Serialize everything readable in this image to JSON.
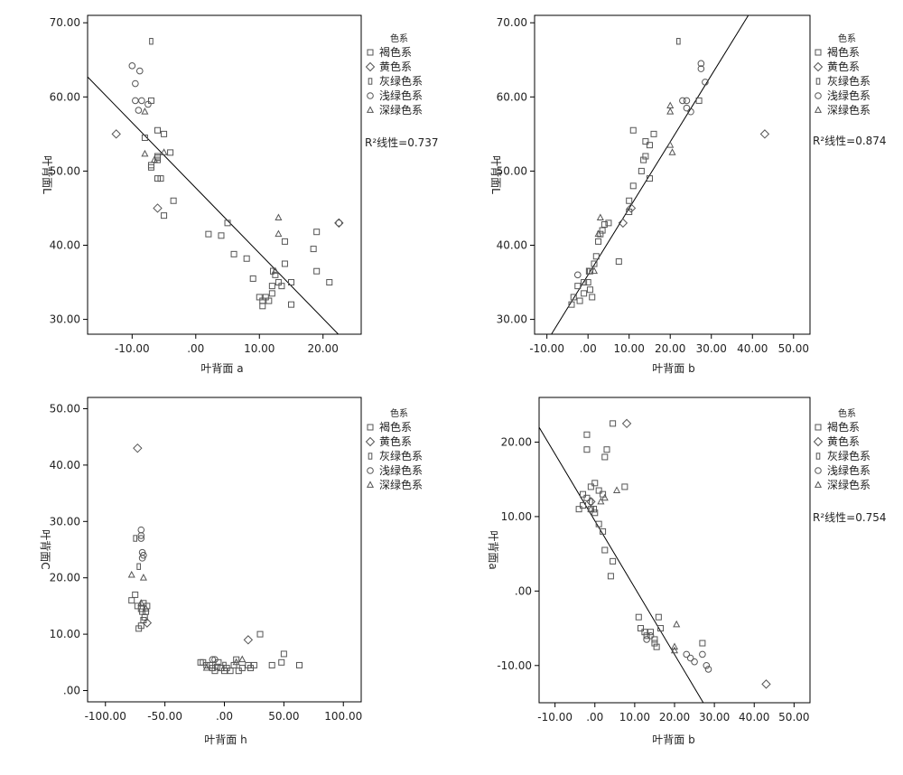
{
  "legend_title": "色系",
  "legend_items": [
    {
      "label": "褐色系",
      "marker": "square"
    },
    {
      "label": "黄色系",
      "marker": "diamond"
    },
    {
      "label": "灰绿色系",
      "marker": "small-rect"
    },
    {
      "label": "浅绿色系",
      "marker": "circle"
    },
    {
      "label": "深绿色系",
      "marker": "triangle"
    }
  ],
  "colors": {
    "marker": "#555555",
    "axis": "#000000",
    "fit_line": "#000000"
  },
  "chart_data": [
    {
      "type": "scatter",
      "xlabel": "叶背面 a",
      "ylabel": "叶背面L",
      "xlim": [
        -17,
        26
      ],
      "ylim": [
        28,
        71
      ],
      "xticks": [
        -10,
        0,
        10,
        20
      ],
      "xtick_labels": [
        "-10.00",
        ".00",
        "10.00",
        "20.00"
      ],
      "yticks": [
        30,
        40,
        50,
        60,
        70
      ],
      "ytick_labels": [
        "30.00",
        "40.00",
        "50.00",
        "60.00",
        "70.00"
      ],
      "r2_label": "R²线性=0.737",
      "fit_line": [
        [
          -17,
          62.7
        ],
        [
          22.4,
          28
        ]
      ],
      "series": [
        {
          "name": "褐色系",
          "marker": "square",
          "points": [
            [
              -8,
              54.5
            ],
            [
              -7,
              50.5
            ],
            [
              -6,
              52
            ],
            [
              -5,
              55
            ],
            [
              -6,
              55.5
            ],
            [
              -6,
              51.5
            ],
            [
              -7,
              50.8
            ],
            [
              -5.5,
              49
            ],
            [
              -6,
              49
            ],
            [
              -5,
              44
            ],
            [
              -4,
              52.5
            ],
            [
              -3.5,
              46
            ],
            [
              -6,
              51.8
            ],
            [
              -7,
              59.5
            ],
            [
              2,
              41.5
            ],
            [
              4,
              41.3
            ],
            [
              5,
              43
            ],
            [
              6,
              38.8
            ],
            [
              8,
              38.2
            ],
            [
              9,
              35.5
            ],
            [
              10,
              33
            ],
            [
              10.5,
              32.5
            ],
            [
              11,
              33
            ],
            [
              12,
              33.5
            ],
            [
              12,
              34.5
            ],
            [
              12.5,
              36
            ],
            [
              13,
              35
            ],
            [
              13.5,
              34.5
            ],
            [
              14,
              40.5
            ],
            [
              14,
              37.5
            ],
            [
              15,
              35
            ],
            [
              15,
              32
            ],
            [
              18.5,
              39.5
            ],
            [
              19,
              36.5
            ],
            [
              19,
              41.8
            ],
            [
              21,
              35
            ],
            [
              10.5,
              31.8
            ],
            [
              11.5,
              32.5
            ]
          ]
        },
        {
          "name": "黄色系",
          "marker": "diamond",
          "points": [
            [
              -12.5,
              55
            ],
            [
              -6,
              45
            ],
            [
              22.5,
              43
            ]
          ]
        },
        {
          "name": "灰绿色系",
          "marker": "small-rect",
          "points": [
            [
              -7,
              67.5
            ],
            [
              12,
              36.5
            ]
          ]
        },
        {
          "name": "浅绿色系",
          "marker": "circle",
          "points": [
            [
              -10,
              64.2
            ],
            [
              -8.8,
              63.5
            ],
            [
              -9.5,
              61.8
            ],
            [
              -9.5,
              59.5
            ],
            [
              -8.5,
              59.5
            ],
            [
              -9,
              58.2
            ],
            [
              -7.5,
              59
            ],
            [
              22.5,
              43
            ]
          ]
        },
        {
          "name": "深绿色系",
          "marker": "triangle",
          "points": [
            [
              -8,
              58
            ],
            [
              -8,
              52.3
            ],
            [
              -6.5,
              51.5
            ],
            [
              -5,
              52.5
            ],
            [
              13,
              43.7
            ],
            [
              13,
              41.5
            ],
            [
              12.5,
              36.5
            ]
          ]
        }
      ]
    },
    {
      "type": "scatter",
      "xlabel": "叶背面 b",
      "ylabel": "叶背面L",
      "xlim": [
        -13,
        54
      ],
      "ylim": [
        28,
        71
      ],
      "xticks": [
        -10,
        0,
        10,
        20,
        30,
        40,
        50
      ],
      "xtick_labels": [
        "-10.00",
        ".00",
        "10.00",
        "20.00",
        "30.00",
        "40.00",
        "50.00"
      ],
      "yticks": [
        30,
        40,
        50,
        60,
        70
      ],
      "ytick_labels": [
        "30.00",
        "40.00",
        "50.00",
        "60.00",
        "70.00"
      ],
      "r2_label": "R²线性=0.874",
      "fit_line": [
        [
          -8.9,
          28
        ],
        [
          39,
          71
        ]
      ],
      "series": [
        {
          "name": "褐色系",
          "marker": "square",
          "points": [
            [
              -4,
              32
            ],
            [
              -3.5,
              33
            ],
            [
              -2.5,
              34.5
            ],
            [
              -2,
              32.5
            ],
            [
              -1,
              33.5
            ],
            [
              0,
              35
            ],
            [
              0.5,
              36.5
            ],
            [
              1.5,
              37.5
            ],
            [
              2,
              38.5
            ],
            [
              2.5,
              40.5
            ],
            [
              3,
              41.5
            ],
            [
              3.5,
              42
            ],
            [
              4,
              42.8
            ],
            [
              5,
              43
            ],
            [
              7.5,
              37.8
            ],
            [
              10,
              46
            ],
            [
              10,
              44.5
            ],
            [
              11,
              48
            ],
            [
              11,
              55.5
            ],
            [
              13,
              50
            ],
            [
              13.5,
              51.5
            ],
            [
              14,
              52
            ],
            [
              14,
              54
            ],
            [
              15,
              49
            ],
            [
              15,
              53.5
            ],
            [
              16,
              55
            ],
            [
              27,
              59.5
            ],
            [
              -1,
              35
            ],
            [
              0.5,
              34
            ],
            [
              1,
              33
            ]
          ]
        },
        {
          "name": "黄色系",
          "marker": "diamond",
          "points": [
            [
              43,
              55
            ],
            [
              8.5,
              43
            ],
            [
              10.5,
              45
            ]
          ]
        },
        {
          "name": "灰绿色系",
          "marker": "small-rect",
          "points": [
            [
              22,
              67.5
            ],
            [
              0,
              36.5
            ]
          ]
        },
        {
          "name": "浅绿色系",
          "marker": "circle",
          "points": [
            [
              27.5,
              64.5
            ],
            [
              27.5,
              63.8
            ],
            [
              28.5,
              62
            ],
            [
              24,
              59.5
            ],
            [
              24,
              58.5
            ],
            [
              23,
              59.5
            ],
            [
              25,
              58
            ],
            [
              -2.5,
              36
            ]
          ]
        },
        {
          "name": "深绿色系",
          "marker": "triangle",
          "points": [
            [
              20,
              58.8
            ],
            [
              20,
              58
            ],
            [
              20,
              53.5
            ],
            [
              20.5,
              52.5
            ],
            [
              3,
              43.7
            ],
            [
              2.5,
              41.5
            ],
            [
              1.5,
              36.5
            ]
          ]
        }
      ]
    },
    {
      "type": "scatter",
      "xlabel": "叶背面 h",
      "ylabel": "叶背面C",
      "xlim": [
        -115,
        115
      ],
      "ylim": [
        -2,
        52
      ],
      "xticks": [
        -100,
        -50,
        0,
        50,
        100
      ],
      "xtick_labels": [
        "-100.00",
        "-50.00",
        ".00",
        "50.00",
        "100.00"
      ],
      "yticks": [
        0,
        10,
        20,
        30,
        40,
        50
      ],
      "ytick_labels": [
        ".00",
        "10.00",
        "20.00",
        "30.00",
        "40.00",
        "50.00"
      ],
      "series": [
        {
          "name": "褐色系",
          "marker": "square",
          "points": [
            [
              -78,
              16
            ],
            [
              -75,
              17
            ],
            [
              -73,
              15
            ],
            [
              -72,
              11
            ],
            [
              -70,
              14.5
            ],
            [
              -69,
              14
            ],
            [
              -68,
              15.5
            ],
            [
              -67,
              13
            ],
            [
              -66,
              14
            ],
            [
              -65,
              15
            ],
            [
              -70,
              11.5
            ],
            [
              -68,
              12.5
            ],
            [
              -20,
              5
            ],
            [
              -18,
              5
            ],
            [
              -15,
              4.5
            ],
            [
              -10,
              4
            ],
            [
              -8,
              3.5
            ],
            [
              -5,
              5
            ],
            [
              -3,
              4
            ],
            [
              0,
              3.5
            ],
            [
              2,
              4
            ],
            [
              5,
              3.5
            ],
            [
              8,
              4.5
            ],
            [
              10,
              5.5
            ],
            [
              12,
              3.5
            ],
            [
              15,
              4
            ],
            [
              20,
              4.5
            ],
            [
              22,
              4
            ],
            [
              25,
              4.5
            ],
            [
              30,
              10
            ],
            [
              40,
              4.5
            ],
            [
              48,
              5
            ],
            [
              50,
              6.5
            ],
            [
              63,
              4.5
            ],
            [
              -12,
              4.5
            ],
            [
              -6,
              4.2
            ]
          ]
        },
        {
          "name": "黄色系",
          "marker": "diamond",
          "points": [
            [
              -73,
              43
            ],
            [
              -65,
              12
            ],
            [
              20,
              9
            ]
          ]
        },
        {
          "name": "灰绿色系",
          "marker": "small-rect",
          "points": [
            [
              -75,
              27
            ],
            [
              -72,
              22
            ],
            [
              0,
              4.5
            ]
          ]
        },
        {
          "name": "浅绿色系",
          "marker": "circle",
          "points": [
            [
              -70,
              28.5
            ],
            [
              -70,
              27.5
            ],
            [
              -70,
              27
            ],
            [
              -69,
              24.5
            ],
            [
              -68,
              24
            ],
            [
              -69,
              23.5
            ],
            [
              -10,
              5.5
            ],
            [
              -8,
              5.5
            ]
          ]
        },
        {
          "name": "深绿色系",
          "marker": "triangle",
          "points": [
            [
              -78,
              20.5
            ],
            [
              -68,
              20
            ],
            [
              -70,
              15.5
            ],
            [
              -66,
              14.5
            ],
            [
              10,
              5
            ],
            [
              15,
              5.5
            ],
            [
              -15,
              4
            ]
          ]
        }
      ]
    },
    {
      "type": "scatter",
      "xlabel": "叶背面 b",
      "ylabel": "叶背面a",
      "xlim": [
        -14,
        54
      ],
      "ylim": [
        -15,
        26
      ],
      "xticks": [
        -10,
        0,
        10,
        20,
        30,
        40,
        50
      ],
      "xtick_labels": [
        "-10.00",
        ".00",
        "10.00",
        "20.00",
        "30.00",
        "40.00",
        "50.00"
      ],
      "yticks": [
        -10,
        0,
        10,
        20
      ],
      "ytick_labels": [
        "-10.00",
        ".00",
        "10.00",
        "20.00"
      ],
      "r2_label": "R²线性=0.754",
      "fit_line": [
        [
          -14,
          22
        ],
        [
          30,
          -17.5
        ]
      ],
      "series": [
        {
          "name": "褐色系",
          "marker": "square",
          "points": [
            [
              -2,
              21
            ],
            [
              4.5,
              22.5
            ],
            [
              -2,
              19
            ],
            [
              2.5,
              18
            ],
            [
              3,
              19
            ],
            [
              -1,
              14
            ],
            [
              1,
              13.5
            ],
            [
              2,
              13
            ],
            [
              -3,
              13
            ],
            [
              -2,
              12.5
            ],
            [
              -1,
              11
            ],
            [
              0,
              10.5
            ],
            [
              1,
              9
            ],
            [
              2,
              8
            ],
            [
              2.5,
              5.5
            ],
            [
              4.5,
              4
            ],
            [
              4,
              2
            ],
            [
              7.5,
              14
            ],
            [
              11,
              -3.5
            ],
            [
              11.5,
              -5
            ],
            [
              12.5,
              -5.5
            ],
            [
              13,
              -6
            ],
            [
              14,
              -5.5
            ],
            [
              15,
              -6.5
            ],
            [
              15,
              -7
            ],
            [
              16,
              -3.5
            ],
            [
              16.5,
              -5
            ],
            [
              15.5,
              -7.5
            ],
            [
              27,
              -7
            ],
            [
              -4,
              11
            ],
            [
              -3,
              11.5
            ],
            [
              0,
              14.5
            ]
          ]
        },
        {
          "name": "黄色系",
          "marker": "diamond",
          "points": [
            [
              8,
              22.5
            ],
            [
              43,
              -12.5
            ],
            [
              -1,
              12
            ]
          ]
        },
        {
          "name": "灰绿色系",
          "marker": "small-rect",
          "points": [
            [
              -1,
              12
            ],
            [
              0,
              11
            ]
          ]
        },
        {
          "name": "浅绿色系",
          "marker": "circle",
          "points": [
            [
              24,
              -9
            ],
            [
              25,
              -9.5
            ],
            [
              28,
              -10
            ],
            [
              27,
              -8.5
            ],
            [
              28.5,
              -10.5
            ],
            [
              23,
              -8.5
            ],
            [
              13,
              -6.5
            ],
            [
              14,
              -6
            ]
          ]
        },
        {
          "name": "深绿色系",
          "marker": "triangle",
          "points": [
            [
              20.5,
              -4.5
            ],
            [
              20,
              -7.5
            ],
            [
              20,
              -8
            ],
            [
              5.5,
              13.5
            ],
            [
              2.5,
              12.5
            ],
            [
              1.5,
              12
            ],
            [
              -1,
              11
            ]
          ]
        }
      ]
    }
  ]
}
